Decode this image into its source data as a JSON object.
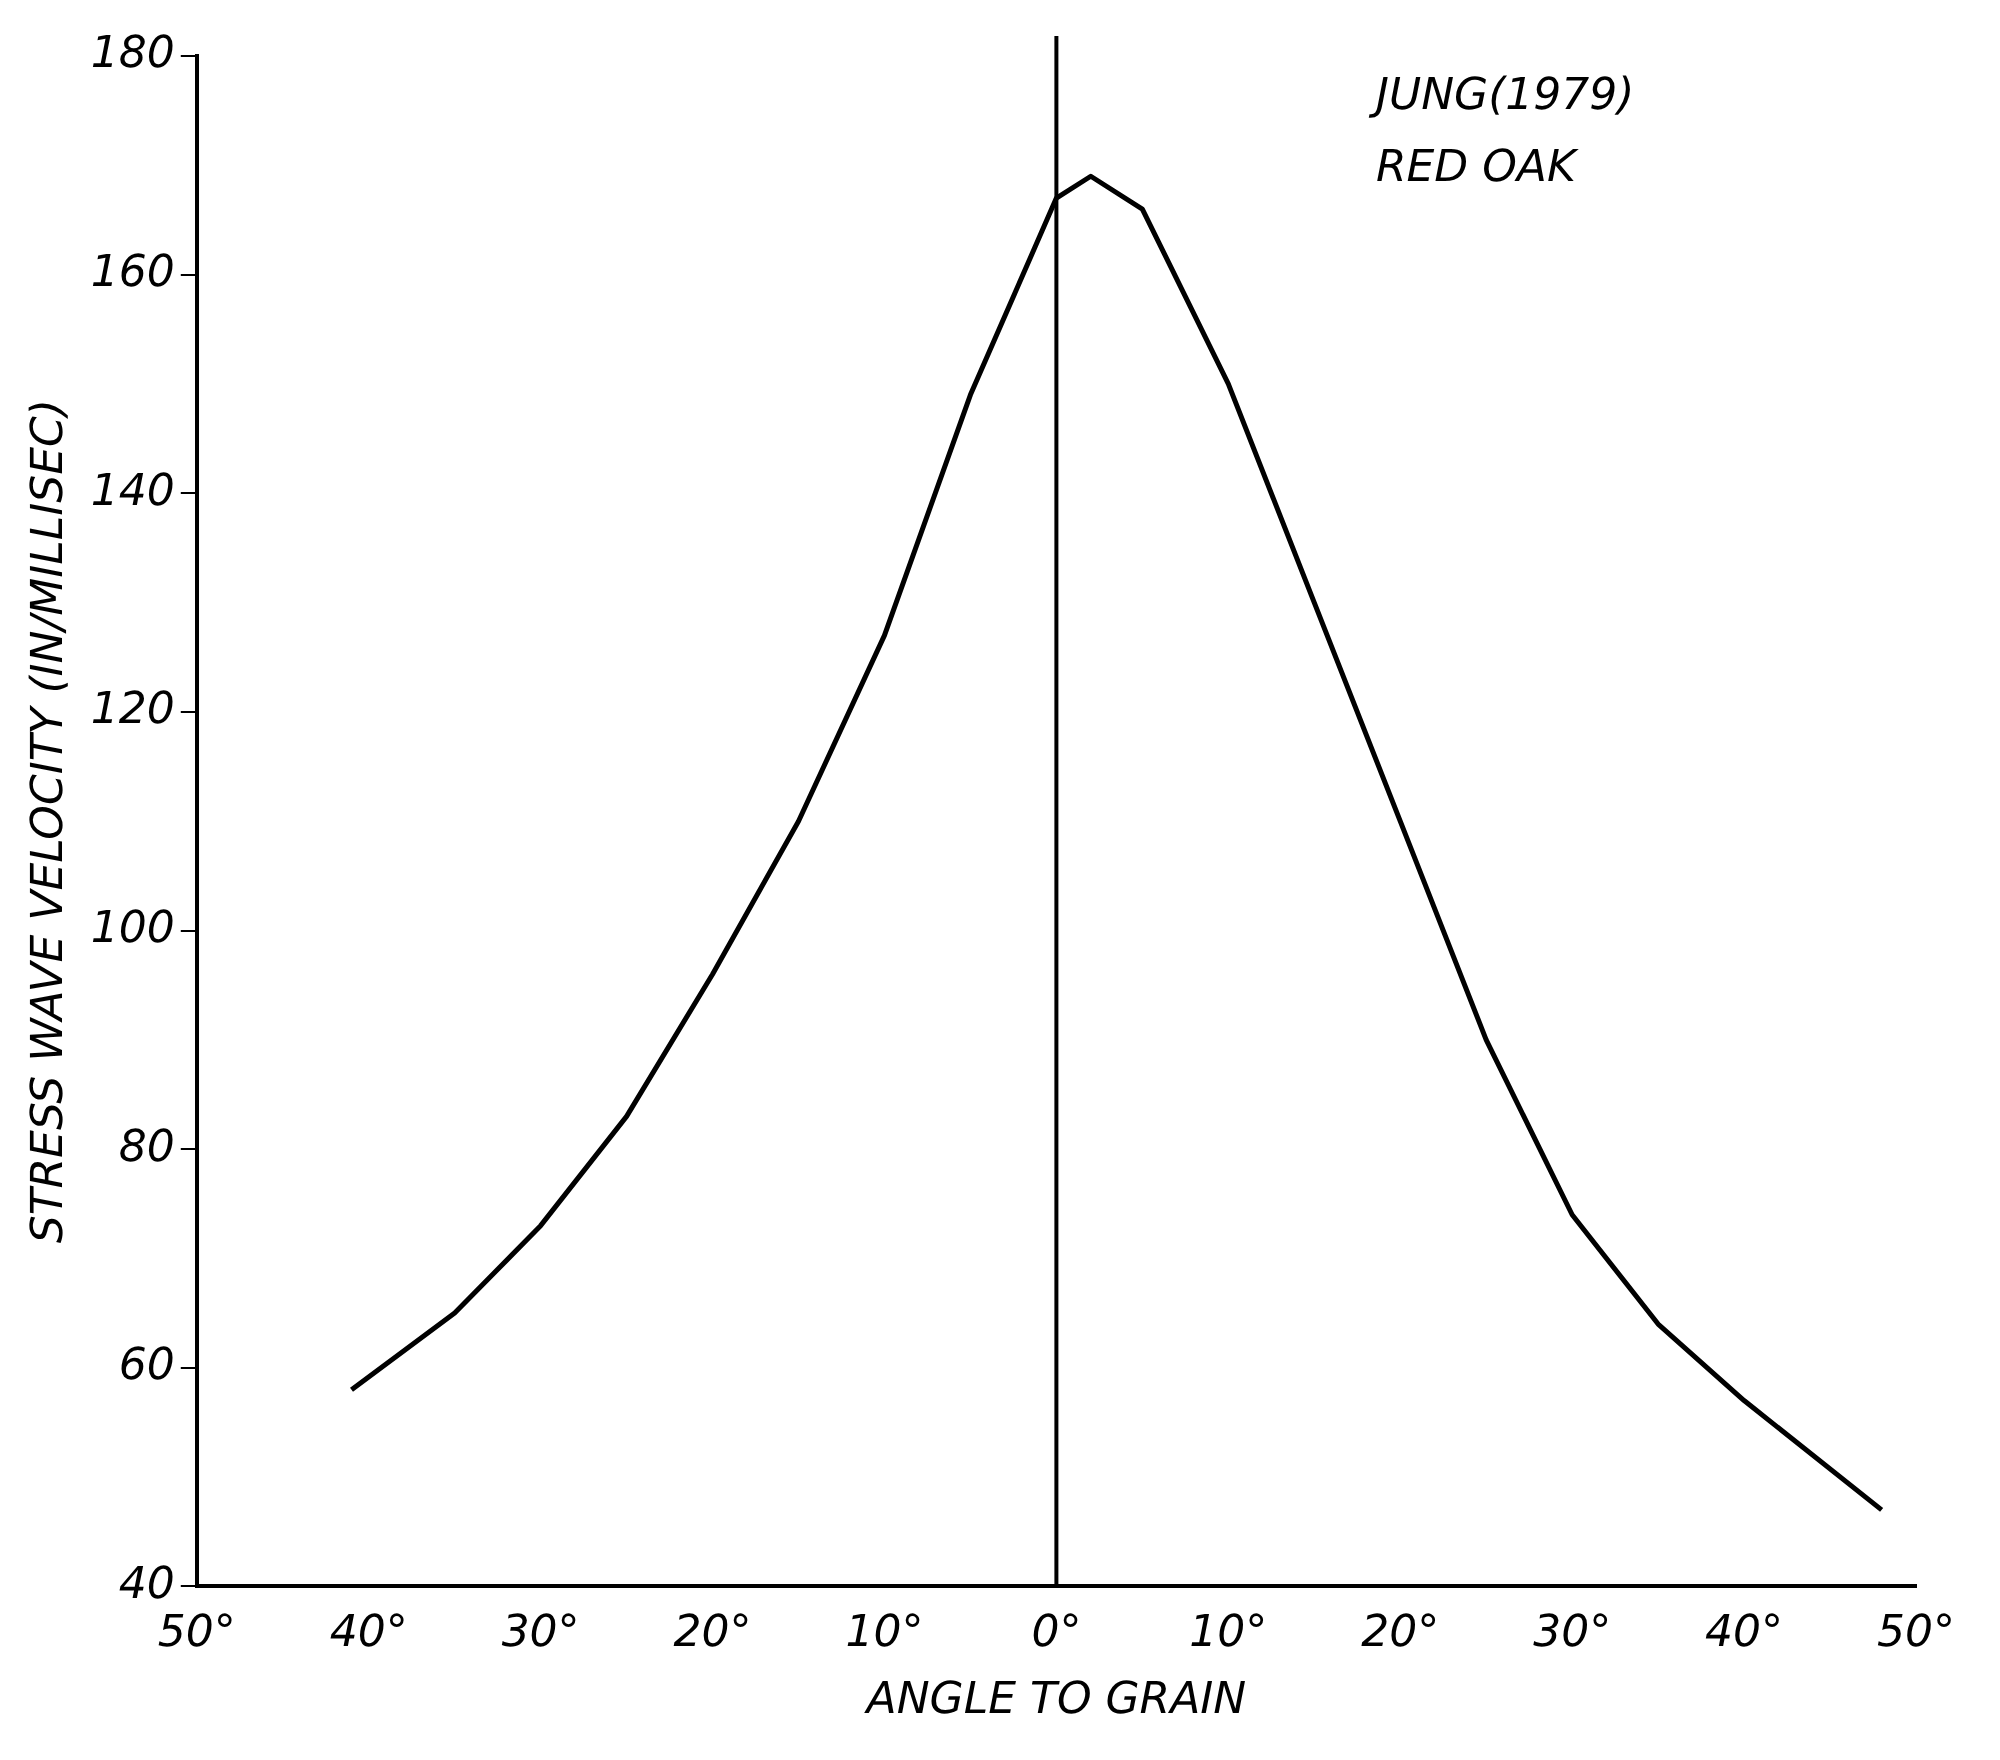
{
  "chart_data": {
    "type": "line",
    "xlabel": "ANGLE TO GRAIN",
    "ylabel": "STRESS WAVE VELOCITY (IN/MILLISEC)",
    "annotations": [
      "JUNG(1979)",
      "RED OAK"
    ],
    "x": [
      -41,
      -35,
      -30,
      -25,
      -20,
      -15,
      -10,
      -5,
      0,
      2,
      5,
      10,
      15,
      20,
      25,
      30,
      35,
      40,
      48
    ],
    "values": [
      58,
      65,
      73,
      83,
      96,
      110,
      127,
      149,
      167,
      169,
      166,
      150,
      130,
      110,
      90,
      74,
      64,
      57,
      47
    ],
    "color": "#000000",
    "marker": "none",
    "line_style": "solid",
    "grid": false,
    "legend": false,
    "xlim": [
      -50,
      50
    ],
    "xticks": [
      {
        "value": -50,
        "label": "50°"
      },
      {
        "value": -40,
        "label": "40°"
      },
      {
        "value": -30,
        "label": "30°"
      },
      {
        "value": -20,
        "label": "20°"
      },
      {
        "value": -10,
        "label": "10°"
      },
      {
        "value": 0,
        "label": "0°"
      },
      {
        "value": 10,
        "label": "10°"
      },
      {
        "value": 20,
        "label": "20°"
      },
      {
        "value": 30,
        "label": "30°"
      },
      {
        "value": 40,
        "label": "40°"
      },
      {
        "value": 50,
        "label": "50°"
      }
    ],
    "ylim": [
      40,
      180
    ],
    "yticks": [
      40,
      60,
      80,
      100,
      120,
      140,
      160,
      180
    ],
    "ref_lines": [
      {
        "axis": "x",
        "value": 0,
        "color": "#000000"
      }
    ]
  }
}
